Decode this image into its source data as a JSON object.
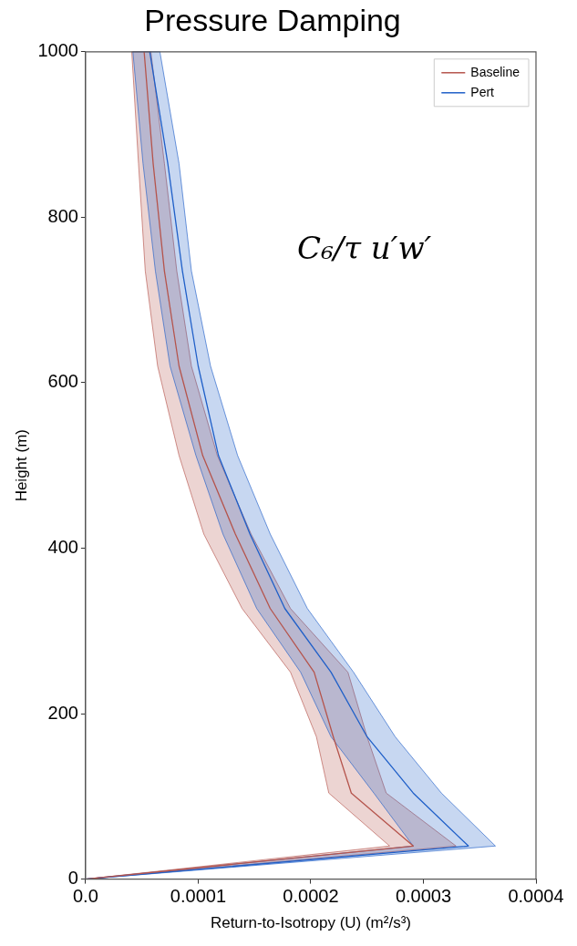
{
  "chart_data": {
    "type": "line",
    "orientation": "horizontal",
    "title": "Pressure Damping",
    "xlabel": "Return-to-Isotropy (U) (m²/s³)",
    "ylabel": "Height (m)",
    "annotations": [
      "C₆/τ u′w′"
    ],
    "xlim": [
      0,
      0.0004
    ],
    "xticks": [
      {
        "value": 0,
        "label": "0.0"
      },
      0.0001,
      0.0002,
      0.0003,
      0.0004
    ],
    "ylim": [
      0,
      1000
    ],
    "yticks": [
      0,
      200,
      400,
      600,
      800,
      1000
    ],
    "legend": "top right",
    "grid": false,
    "marker": "none",
    "line_style": "solid",
    "series": [
      {
        "name": "Baseline",
        "color": "#b5544c",
        "x": [
          0,
          40,
          104,
          172,
          250,
          327,
          417,
          512,
          620,
          735,
          865,
          1000
        ],
        "values": [
          0,
          0.000291,
          0.000236,
          0.00022,
          0.000203,
          0.000164,
          0.000133,
          0.000104,
          8.3e-05,
          7e-05,
          6e-05,
          5.2e-05
        ],
        "lower": [
          0,
          0.00027,
          0.000216,
          0.000205,
          0.000182,
          0.000139,
          0.000105,
          8.3e-05,
          6.4e-05,
          5.3e-05,
          4.7e-05,
          4.1e-05
        ],
        "upper": [
          0,
          0.000329,
          0.000267,
          0.00025,
          0.000233,
          0.000182,
          0.000147,
          0.000117,
          9.4e-05,
          8.1e-05,
          7e-05,
          5.8e-05
        ]
      },
      {
        "name": "Pert",
        "color": "#1f5fc8",
        "x": [
          0,
          40,
          104,
          172,
          250,
          327,
          417,
          512,
          620,
          735,
          865,
          1000
        ],
        "values": [
          0,
          0.00034,
          0.000291,
          0.00025,
          0.000218,
          0.000177,
          0.000146,
          0.000118,
          0.0001,
          8.6e-05,
          7.3e-05,
          5.7e-05
        ],
        "lower": [
          0,
          0.000291,
          0.000256,
          0.000218,
          0.000191,
          0.000152,
          0.000122,
          9.8e-05,
          7.5e-05,
          6.2e-05,
          5.1e-05,
          4.2e-05
        ],
        "upper": [
          0,
          0.000364,
          0.000316,
          0.000275,
          0.000238,
          0.000197,
          0.000164,
          0.000135,
          0.000111,
          9.4e-05,
          8.3e-05,
          6.6e-05
        ]
      }
    ]
  }
}
